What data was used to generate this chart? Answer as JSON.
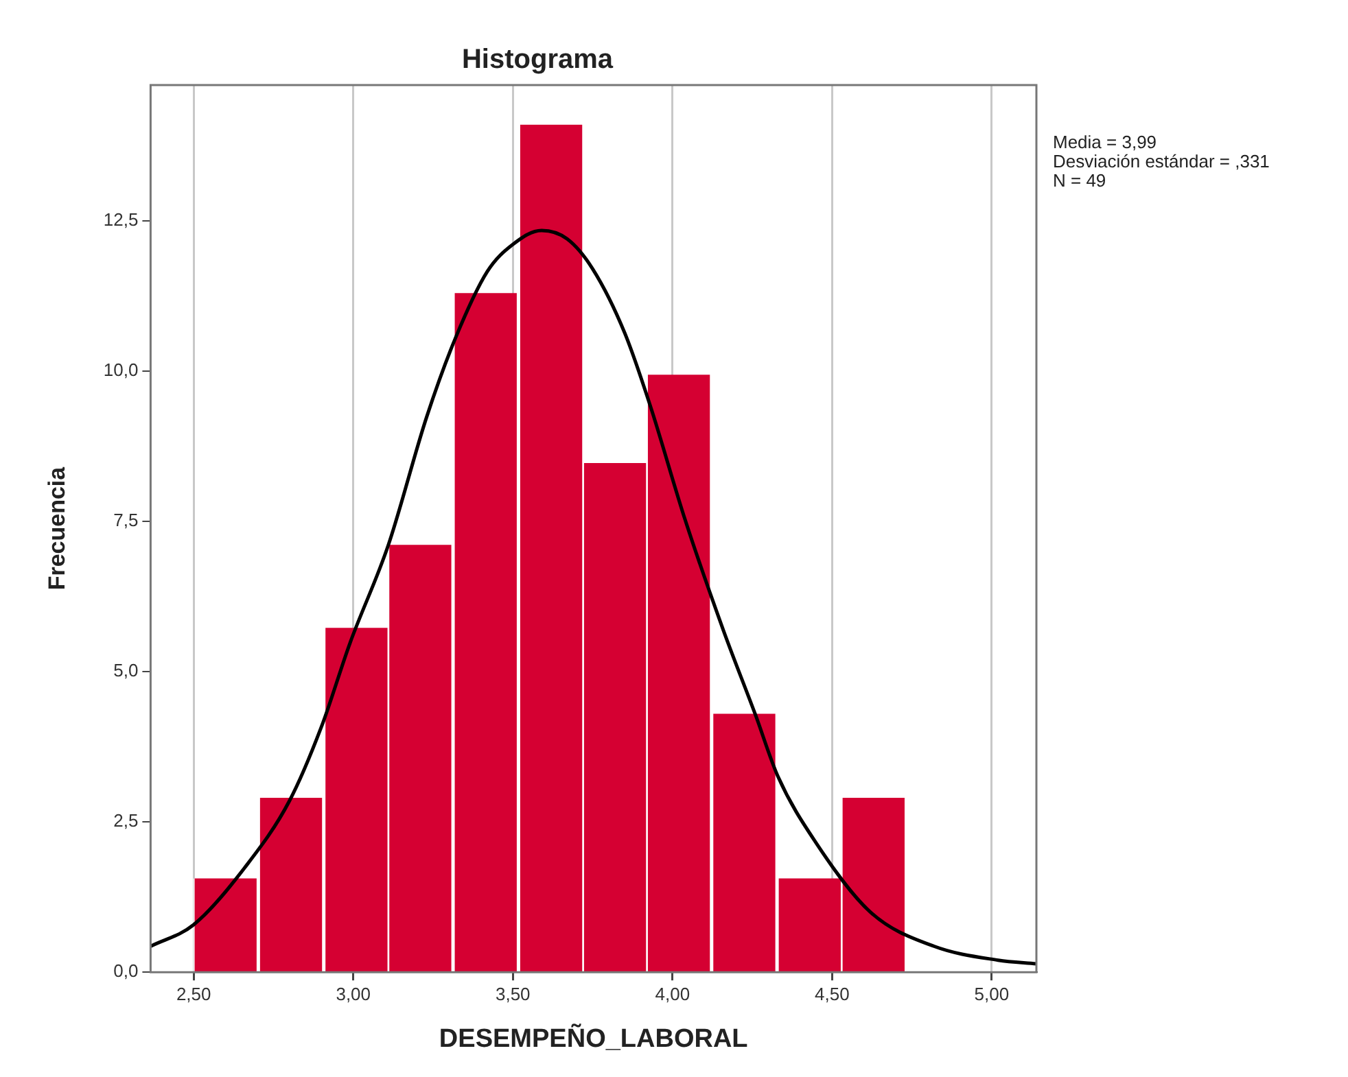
{
  "chart_data": {
    "type": "histogram",
    "title": "Histograma",
    "xlabel": "DESEMPEÑO_LABORAL",
    "ylabel": "Frecuencia",
    "bins": [
      2.5,
      2.7,
      2.91,
      3.11,
      3.31,
      3.52,
      3.72,
      3.92,
      4.12,
      4.33,
      4.53,
      4.73
    ],
    "values": [
      1.56,
      2.9,
      5.73,
      7.11,
      11.3,
      14.1,
      8.47,
      9.94,
      4.3,
      1.56,
      2.9
    ],
    "color": "#d50032",
    "series": [
      {
        "type": "line",
        "color": "#000000",
        "x": [
          2.365,
          2.5,
          2.66,
          2.8,
          2.9,
          2.99,
          3.11,
          3.23,
          3.32,
          3.42,
          3.5,
          3.59,
          3.67,
          3.75,
          3.85,
          3.93,
          4.04,
          4.16,
          4.26,
          4.33,
          4.45,
          4.62,
          4.82,
          5.02,
          5.14
        ],
        "values": [
          0.43,
          0.79,
          1.74,
          2.85,
          4.08,
          5.48,
          7.11,
          9.24,
          10.55,
          11.66,
          12.11,
          12.34,
          12.2,
          11.7,
          10.64,
          9.43,
          7.52,
          5.68,
          4.28,
          3.26,
          2.15,
          1.0,
          0.43,
          0.2,
          0.14
        ]
      }
    ],
    "xlim": [
      2.365,
      5.14
    ],
    "xticks": [
      {
        "value": 2.5,
        "label": "2,50"
      },
      {
        "value": 3,
        "label": "3,00"
      },
      {
        "value": 3.5,
        "label": "3,50"
      },
      {
        "value": 4,
        "label": "4,00"
      },
      {
        "value": 4.5,
        "label": "4,50"
      },
      {
        "value": 5,
        "label": "5,00"
      }
    ],
    "ylim": [
      0,
      14.76
    ],
    "yticks": [
      {
        "value": 0,
        "label": "0,0"
      },
      {
        "value": 2.5,
        "label": "2,5"
      },
      {
        "value": 5,
        "label": "5,0"
      },
      {
        "value": 7.5,
        "label": "7,5"
      },
      {
        "value": 10,
        "label": "10,0"
      },
      {
        "value": 12.5,
        "label": "12,5"
      }
    ],
    "grid": "x",
    "marker": "none",
    "line_style": "solid",
    "annotations": [
      "Media = 3,99",
      "Desviación estándar = ,331",
      "N = 49"
    ]
  }
}
